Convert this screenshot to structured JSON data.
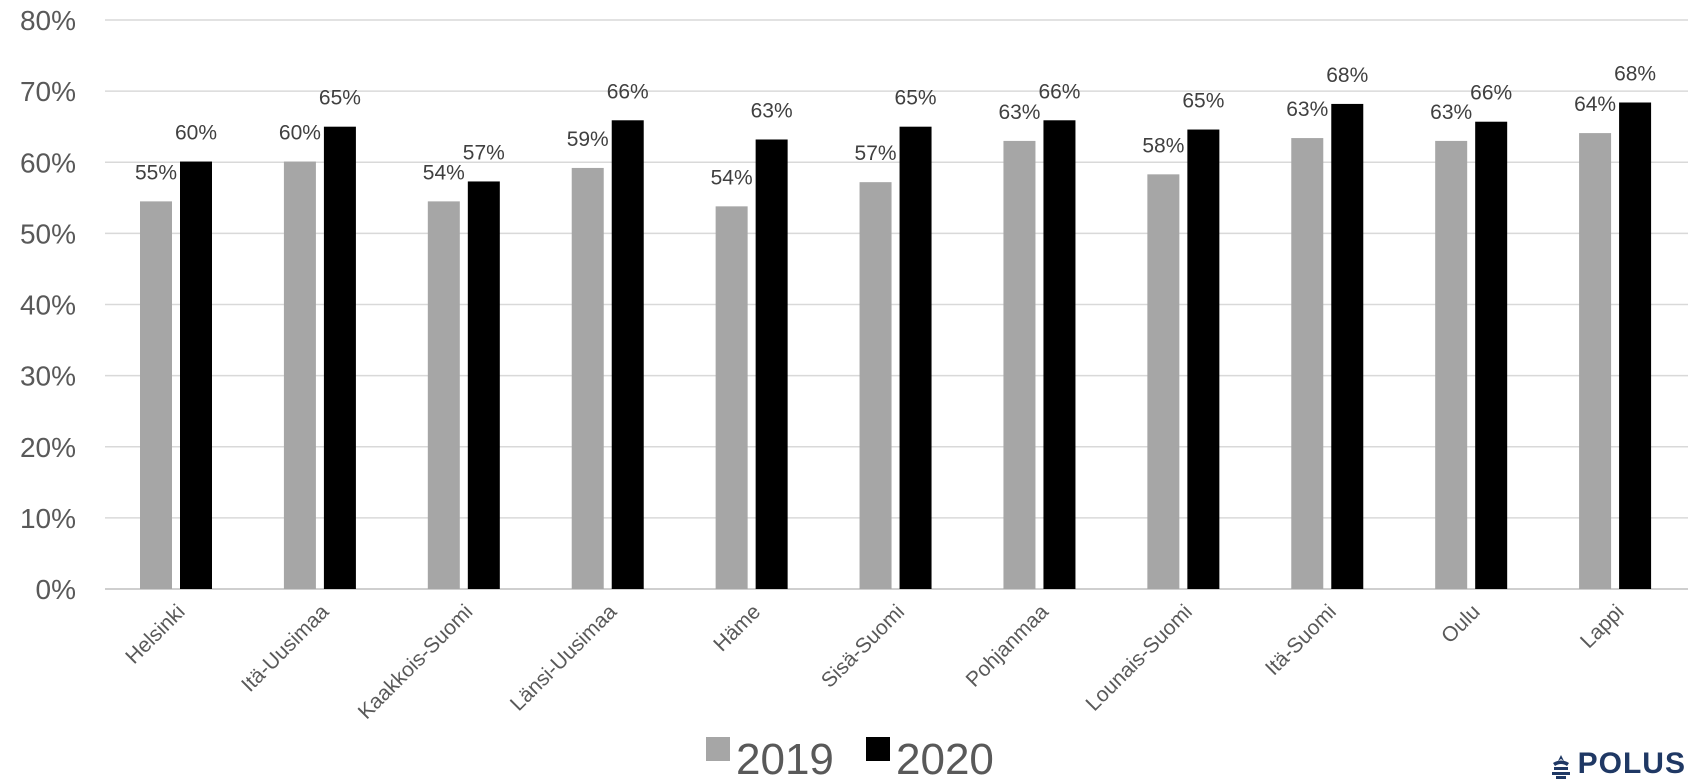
{
  "chart_data": {
    "type": "bar",
    "categories": [
      "Helsinki",
      "Itä-Uusimaa",
      "Kaakkois-Suomi",
      "Länsi-Uusimaa",
      "Häme",
      "Sisä-Suomi",
      "Pohjanmaa",
      "Lounais-Suomi",
      "Itä-Suomi",
      "Oulu",
      "Lappi"
    ],
    "series": [
      {
        "name": "2019",
        "color": "#a6a6a6",
        "values": [
          54.5,
          60.1,
          54.5,
          59.2,
          53.8,
          57.2,
          63.0,
          58.3,
          63.4,
          63.0,
          64.1
        ],
        "labels": [
          "55%",
          "60%",
          "54%",
          "59%",
          "54%",
          "57%",
          "63%",
          "58%",
          "63%",
          "63%",
          "64%"
        ]
      },
      {
        "name": "2020",
        "color": "#000000",
        "values": [
          60.1,
          65.0,
          57.3,
          65.9,
          63.2,
          65.0,
          65.9,
          64.6,
          68.2,
          65.7,
          68.4
        ],
        "labels": [
          "60%",
          "65%",
          "57%",
          "66%",
          "63%",
          "65%",
          "66%",
          "65%",
          "68%",
          "66%",
          "68%"
        ]
      }
    ],
    "ylim": [
      0,
      80
    ],
    "yticks": [
      "0%",
      "10%",
      "20%",
      "30%",
      "40%",
      "50%",
      "60%",
      "70%",
      "80%"
    ],
    "grid": true,
    "legend_position": "bottom",
    "gridline_color": "#d9d9d9"
  },
  "logo": {
    "text": "POLUS",
    "icon": "polus-logo-icon",
    "color": "#1f3864"
  }
}
